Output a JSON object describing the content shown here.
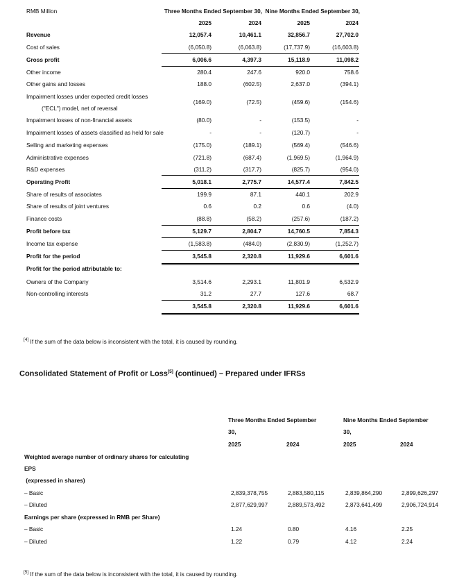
{
  "table1": {
    "unit_label": "RMB Million",
    "group_headers": [
      "Three Months Ended September 30,",
      "Nine Months Ended September 30,"
    ],
    "years": [
      "2025",
      "2024",
      "2025",
      "2024"
    ],
    "rows": [
      {
        "label": "Revenue",
        "bold": true,
        "values": [
          "12,057.4",
          "10,461.1",
          "32,856.7",
          "27,702.0"
        ]
      },
      {
        "label": "Cost of sales",
        "values": [
          "(6,050.8)",
          "(6,063.8)",
          "(17,737.9)",
          "(16,603.8)"
        ]
      },
      {
        "label": "Gross profit",
        "bold": true,
        "values": [
          "6,006.6",
          "4,397.3",
          "15,118.9",
          "11,098.2"
        ]
      },
      {
        "label": "Other income",
        "values": [
          "280.4",
          "247.6",
          "920.0",
          "758.6"
        ]
      },
      {
        "label": "Other gains and losses",
        "values": [
          "188.0",
          "(602.5)",
          "2,637.0",
          "(394.1)"
        ]
      },
      {
        "label": "Impairment losses under expected credit losses",
        "label2": "(\"ECL\") model, net of reversal",
        "values": [
          "(169.0)",
          "(72.5)",
          "(459.6)",
          "(154.6)"
        ]
      },
      {
        "label": "Impairment losses of non-financial assets",
        "values": [
          "(80.0)",
          "-",
          "(153.5)",
          "-"
        ]
      },
      {
        "label": "Impairment losses of assets classified as held for sale",
        "values": [
          "-",
          "-",
          "(120.7)",
          "-"
        ]
      },
      {
        "label": "Selling and marketing expenses",
        "values": [
          "(175.0)",
          "(189.1)",
          "(569.4)",
          "(546.6)"
        ]
      },
      {
        "label": "Administrative expenses",
        "values": [
          "(721.8)",
          "(687.4)",
          "(1,969.5)",
          "(1,964.9)"
        ]
      },
      {
        "label": "R&D expenses",
        "values": [
          "(311.2)",
          "(317.7)",
          "(825.7)",
          "(954.0)"
        ]
      },
      {
        "label": "Operating Profit",
        "bold": true,
        "values": [
          "5,018.1",
          "2,775.7",
          "14,577.4",
          "7,842.5"
        ]
      },
      {
        "label": "Share of results of associates",
        "values": [
          "199.9",
          "87.1",
          "440.1",
          "202.9"
        ]
      },
      {
        "label": "Share of results of joint ventures",
        "values": [
          "0.6",
          "0.2",
          "0.6",
          "(4.0)"
        ]
      },
      {
        "label": "Finance costs",
        "values": [
          "(88.8)",
          "(58.2)",
          "(257.6)",
          "(187.2)"
        ]
      },
      {
        "label": "Profit before tax",
        "bold": true,
        "values": [
          "5,129.7",
          "2,804.7",
          "14,760.5",
          "7,854.3"
        ]
      },
      {
        "label": "Income tax expense",
        "values": [
          "(1,583.8)",
          "(484.0)",
          "(2,830.9)",
          "(1,252.7)"
        ]
      },
      {
        "label": "Profit for the period",
        "bold": true,
        "values": [
          "3,545.8",
          "2,320.8",
          "11,929.6",
          "6,601.6"
        ]
      },
      {
        "label": "Profit for the period attributable to:",
        "bold": true,
        "values": [
          "",
          "",
          "",
          ""
        ]
      },
      {
        "label": "Owners of the Company",
        "values": [
          "3,514.6",
          "2,293.1",
          "11,801.9",
          "6,532.9"
        ]
      },
      {
        "label": "Non-controlling interests",
        "values": [
          "31.2",
          "27.7",
          "127.6",
          "68.7"
        ]
      },
      {
        "label": "",
        "bold": true,
        "values": [
          "3,545.8",
          "2,320.8",
          "11,929.6",
          "6,601.6"
        ]
      }
    ],
    "footnote_marker": "[4]",
    "footnote": "If the sum of the data below is inconsistent with the total, it is caused by rounding."
  },
  "section2": {
    "title": "Consolidated Statement of Profit or Loss",
    "title_marker": "[5]",
    "title_suffix": " (continued) – Prepared under IFRSs",
    "group_headers": [
      [
        "Three Months Ended September",
        "30,"
      ],
      [
        "Nine Months Ended September",
        "30,"
      ]
    ],
    "years": [
      "2025",
      "2024",
      "2025",
      "2024"
    ],
    "rows": [
      {
        "label": "Weighted average number of ordinary shares for calculating",
        "bold": true,
        "values": [
          "",
          "",
          "",
          ""
        ]
      },
      {
        "label": "EPS",
        "bold": true,
        "values": [
          "",
          "",
          "",
          ""
        ]
      },
      {
        "label": " (expressed in shares)",
        "bold": true,
        "values": [
          "",
          "",
          "",
          ""
        ]
      },
      {
        "label": "– Basic",
        "values": [
          "2,839,378,755",
          "2,883,580,115",
          "2,839,864,290",
          "2,899,626,297"
        ]
      },
      {
        "label": "– Diluted",
        "values": [
          "2,877,629,997",
          "2,889,573,492",
          "2,873,641,499",
          "2,906,724,914"
        ]
      },
      {
        "label": "Earnings per share (expressed in RMB per Share)",
        "bold": true,
        "values": [
          "",
          "",
          "",
          ""
        ]
      },
      {
        "label": "– Basic",
        "values": [
          "1.24",
          "0.80",
          "4.16",
          "2.25"
        ]
      },
      {
        "label": "– Diluted",
        "values": [
          "1.22",
          "0.79",
          "4.12",
          "2.24"
        ]
      }
    ],
    "footnote_marker": "[5]",
    "footnote": "If the sum of the data below is inconsistent with the total, it is caused by rounding."
  }
}
